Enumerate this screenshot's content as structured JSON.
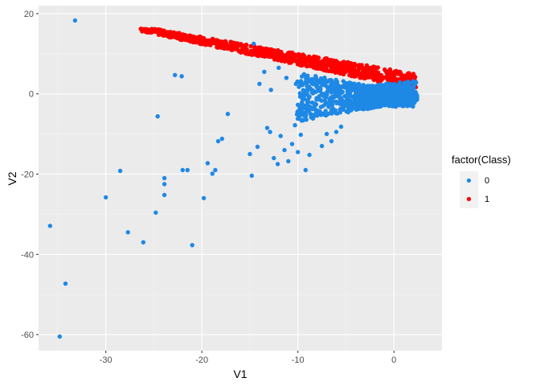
{
  "chart_data": {
    "type": "scatter",
    "title": "",
    "xlabel": "V1",
    "ylabel": "V2",
    "xlim": [
      -37,
      5
    ],
    "ylim": [
      -64,
      22
    ],
    "x_ticks": [
      -30,
      -20,
      -10,
      0
    ],
    "x_tick_labels": [
      "-30",
      "-20",
      "-10",
      "0"
    ],
    "y_ticks": [
      20,
      0,
      -20,
      -40,
      -60
    ],
    "y_tick_labels": [
      "20",
      "0",
      "-20",
      "-40",
      "-60"
    ],
    "grid": true,
    "background": "#ebebeb",
    "legend": {
      "title": "factor(Class)",
      "position": "right",
      "entries": [
        {
          "label": "0",
          "color": "#1e88e5"
        },
        {
          "label": "1",
          "color": "#ff0000"
        }
      ]
    },
    "series": [
      {
        "name": "0",
        "color": "#1e88e5",
        "dense_region": {
          "x": [
            -12,
            2.5
          ],
          "y": [
            -12,
            7
          ]
        },
        "points": [
          [
            -33.2,
            18.3
          ],
          [
            -22.8,
            4.7
          ],
          [
            -22.1,
            4.4
          ],
          [
            -24.6,
            -5.6
          ],
          [
            -35.8,
            -32.9
          ],
          [
            -34.8,
            -60.5
          ],
          [
            -34.2,
            -47.3
          ],
          [
            -30.0,
            -25.8
          ],
          [
            -28.5,
            -19.2
          ],
          [
            -27.7,
            -34.5
          ],
          [
            -26.1,
            -37.0
          ],
          [
            -24.8,
            -29.6
          ],
          [
            -23.9,
            -21.0
          ],
          [
            -23.9,
            -22.5
          ],
          [
            -23.9,
            -25.2
          ],
          [
            -22.0,
            -19.0
          ],
          [
            -21.5,
            -19.0
          ],
          [
            -21.0,
            -37.7
          ],
          [
            -19.8,
            -26.0
          ],
          [
            -19.4,
            -17.3
          ],
          [
            -18.9,
            -19.9
          ],
          [
            -18.6,
            -19.0
          ],
          [
            -18.3,
            -11.8
          ],
          [
            -17.9,
            -11.2
          ],
          [
            -17.3,
            -5.0
          ],
          [
            -15.0,
            -15.0
          ],
          [
            -14.8,
            -20.4
          ],
          [
            -14.2,
            -13.2
          ],
          [
            -14.0,
            2.5
          ],
          [
            -13.2,
            -8.5
          ],
          [
            -12.9,
            -9.5
          ],
          [
            -12.5,
            -16.0
          ],
          [
            -12.1,
            -17.5
          ],
          [
            -11.8,
            -10.5
          ],
          [
            -11.4,
            -14.0
          ],
          [
            -11.0,
            -16.8
          ],
          [
            -10.6,
            -12.5
          ],
          [
            -10.3,
            -7.8
          ],
          [
            -10.0,
            -14.5
          ],
          [
            -9.7,
            -10.2
          ],
          [
            -9.2,
            -19.0
          ],
          [
            -8.8,
            -15.2
          ],
          [
            -14.6,
            12.5
          ],
          [
            -13.5,
            5.5
          ],
          [
            -12.8,
            1.0
          ],
          [
            -7.5,
            -13.0
          ],
          [
            -7.0,
            -10.0
          ],
          [
            -6.5,
            -11.8
          ],
          [
            -6.0,
            -9.5
          ],
          [
            -5.5,
            -8.2
          ],
          [
            -12.0,
            6.5
          ],
          [
            -11.2,
            4.0
          ],
          [
            -10.2,
            2.5
          ]
        ]
      },
      {
        "name": "1",
        "color": "#ff0000",
        "band": {
          "x_start": -26.5,
          "x_end": 2.3,
          "y_start": 16.3,
          "y_end": 3.0
        }
      }
    ]
  }
}
